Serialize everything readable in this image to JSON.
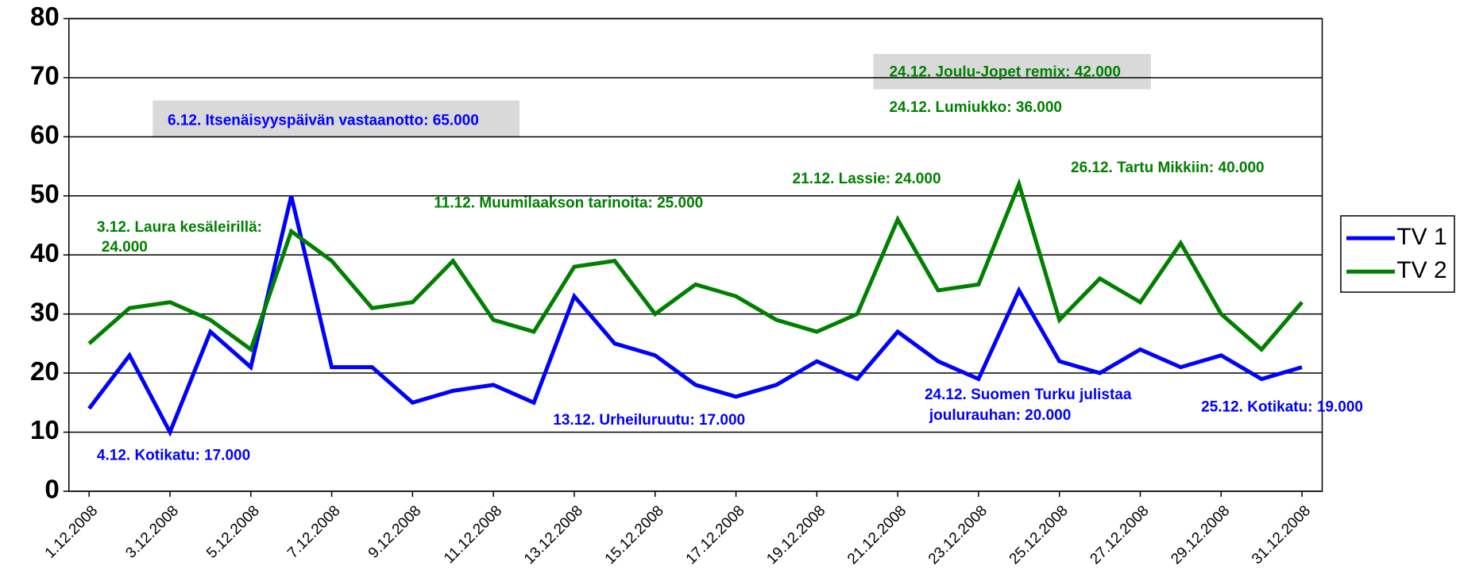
{
  "chart_data": {
    "type": "line",
    "categories": [
      "1.12.2008",
      null,
      "3.12.2008",
      null,
      "5.12.2008",
      null,
      "7.12.2008",
      null,
      "9.12.2008",
      null,
      "11.12.2008",
      null,
      "13.12.2008",
      null,
      "15.12.2008",
      null,
      "17.12.2008",
      null,
      "19.12.2008",
      null,
      "21.12.2008",
      null,
      "23.12.2008",
      null,
      "25.12.2008",
      null,
      "27.12.2008",
      null,
      "29.12.2008",
      null,
      "31.12.2008"
    ],
    "series": [
      {
        "name": "TV 1",
        "color": "#0000ff",
        "values": [
          14,
          23,
          10,
          27,
          21,
          50,
          21,
          21,
          15,
          17,
          18,
          15,
          33,
          25,
          23,
          18,
          16,
          18,
          22,
          19,
          27,
          22,
          19,
          34,
          22,
          20,
          24,
          21,
          23,
          19,
          21
        ]
      },
      {
        "name": "TV 2",
        "color": "#008000",
        "values": [
          25,
          31,
          32,
          29,
          24,
          44,
          39,
          31,
          32,
          39,
          29,
          27,
          38,
          39,
          30,
          35,
          33,
          29,
          27,
          30,
          46,
          34,
          35,
          52,
          29,
          36,
          32,
          42,
          30,
          24,
          32
        ]
      }
    ],
    "ylim": [
      0,
      80
    ],
    "yticks": [
      0,
      10,
      20,
      30,
      40,
      50,
      60,
      70,
      80
    ],
    "grid": true,
    "legend": "right",
    "annotations": [
      {
        "text": [
          "6.12. Itsenäisyyspäivän vastaanotto: 65.000"
        ],
        "color": "#0000ff"
      },
      {
        "text": [
          "24.12. Joulu-Jopet remix: 42.000"
        ],
        "color": "#008000"
      },
      {
        "text": [
          "24.12. Lumiukko: 36.000"
        ],
        "color": "#008000"
      },
      {
        "text": [
          "21.12. Lassie: 24.000"
        ],
        "color": "#008000"
      },
      {
        "text": [
          "26.12. Tartu Mikkiin: 40.000"
        ],
        "color": "#008000"
      },
      {
        "text": [
          "11.12. Muumilaakson tarinoita: 25.000"
        ],
        "color": "#008000"
      },
      {
        "text": [
          "3.12. Laura kesäleirillä:",
          "24.000"
        ],
        "color": "#008000"
      },
      {
        "text": [
          "4.12. Kotikatu: 17.000"
        ],
        "color": "#0000ff"
      },
      {
        "text": [
          "13.12. Urheiluruutu: 17.000"
        ],
        "color": "#0000ff"
      },
      {
        "text": [
          "24.12. Suomen Turku julistaa",
          "joulurauhan: 20.000"
        ],
        "color": "#0000ff"
      },
      {
        "text": [
          "25.12. Kotikatu: 19.000"
        ],
        "color": "#0000ff"
      }
    ]
  }
}
